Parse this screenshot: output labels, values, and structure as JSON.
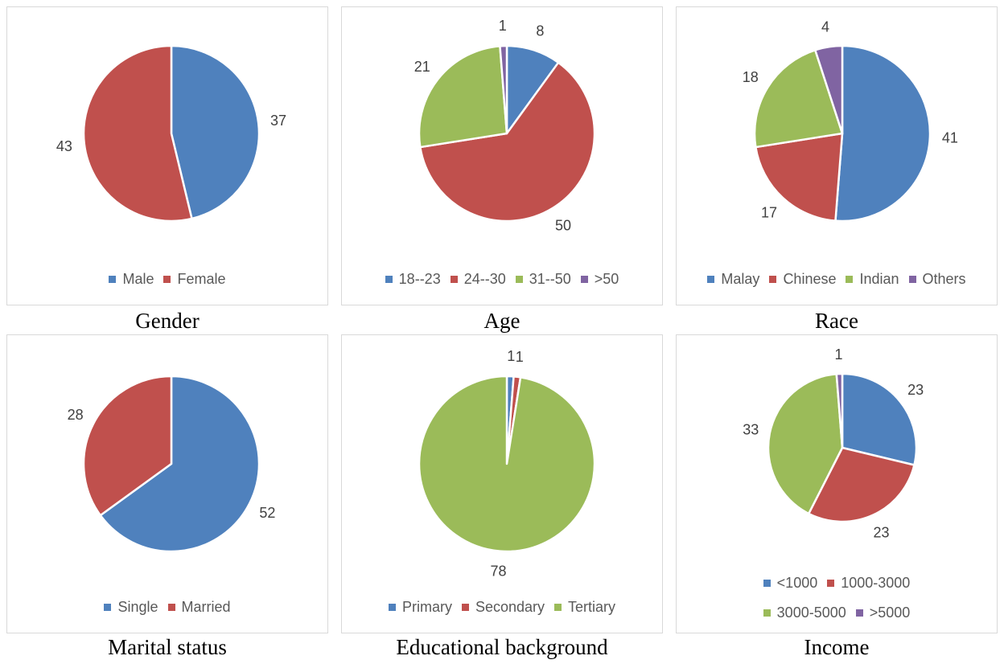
{
  "chart_data": [
    {
      "type": "pie",
      "title": "Gender",
      "categories": [
        "Male",
        "Female"
      ],
      "values": [
        37,
        43
      ],
      "colors": [
        "#4F81BD",
        "#C0504D"
      ],
      "legend_position": "bottom"
    },
    {
      "type": "pie",
      "title": "Age",
      "categories": [
        "18--23",
        "24--30",
        "31--50",
        ">50"
      ],
      "values": [
        8,
        50,
        21,
        1
      ],
      "colors": [
        "#4F81BD",
        "#C0504D",
        "#9BBB59",
        "#8064A2"
      ],
      "legend_position": "bottom"
    },
    {
      "type": "pie",
      "title": "Race",
      "categories": [
        "Malay",
        "Chinese",
        "Indian",
        "Others"
      ],
      "values": [
        41,
        17,
        18,
        4
      ],
      "colors": [
        "#4F81BD",
        "#C0504D",
        "#9BBB59",
        "#8064A2"
      ],
      "legend_position": "bottom"
    },
    {
      "type": "pie",
      "title": "Marital status",
      "categories": [
        "Single",
        "Married"
      ],
      "values": [
        52,
        28
      ],
      "colors": [
        "#4F81BD",
        "#C0504D"
      ],
      "legend_position": "bottom"
    },
    {
      "type": "pie",
      "title": "Educational background",
      "categories": [
        "Primary",
        "Secondary",
        "Tertiary"
      ],
      "values": [
        1,
        1,
        78
      ],
      "colors": [
        "#4F81BD",
        "#C0504D",
        "#9BBB59"
      ],
      "legend_position": "bottom"
    },
    {
      "type": "pie",
      "title": "Income",
      "categories": [
        "<1000",
        "1000-3000",
        "3000-5000",
        ">5000"
      ],
      "values": [
        23,
        23,
        33,
        1
      ],
      "colors": [
        "#4F81BD",
        "#C0504D",
        "#9BBB59",
        "#8064A2"
      ],
      "legend_position": "bottom"
    }
  ]
}
